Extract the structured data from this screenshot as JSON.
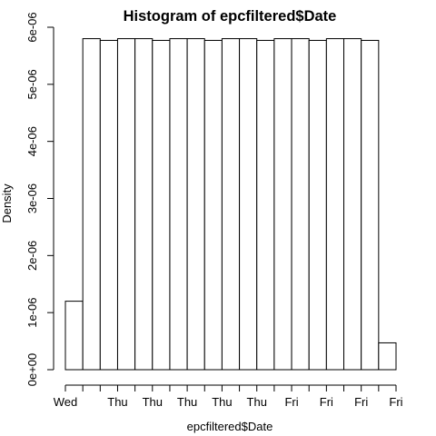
{
  "chart_data": {
    "type": "bar",
    "title": "Histogram of epcfiltered$Date",
    "xlabel": "epcfiltered$Date",
    "ylabel": "Density",
    "ylim": [
      0,
      6e-06
    ],
    "y_ticks": [
      {
        "value": 0,
        "label": "0e+00"
      },
      {
        "value": 1e-06,
        "label": "1e-06"
      },
      {
        "value": 2e-06,
        "label": "2e-06"
      },
      {
        "value": 3e-06,
        "label": "3e-06"
      },
      {
        "value": 4e-06,
        "label": "4e-06"
      },
      {
        "value": 5e-06,
        "label": "5e-06"
      },
      {
        "value": 6e-06,
        "label": "6e-06"
      }
    ],
    "bins": 19,
    "values": [
      1.2e-06,
      5.8e-06,
      5.77e-06,
      5.8e-06,
      5.8e-06,
      5.77e-06,
      5.8e-06,
      5.8e-06,
      5.77e-06,
      5.8e-06,
      5.8e-06,
      5.77e-06,
      5.8e-06,
      5.8e-06,
      5.77e-06,
      5.8e-06,
      5.8e-06,
      5.77e-06,
      4.7e-07
    ],
    "x_tick_count": 20,
    "x_tick_labels": [
      {
        "index": 0,
        "label": "Wed"
      },
      {
        "index": 3,
        "label": "Thu"
      },
      {
        "index": 5,
        "label": "Thu"
      },
      {
        "index": 7,
        "label": "Thu"
      },
      {
        "index": 9,
        "label": "Thu"
      },
      {
        "index": 11,
        "label": "Thu"
      },
      {
        "index": 13,
        "label": "Fri"
      },
      {
        "index": 15,
        "label": "Fri"
      },
      {
        "index": 17,
        "label": "Fri"
      },
      {
        "index": 19,
        "label": "Fri"
      }
    ],
    "grid": false,
    "legend": "none"
  }
}
